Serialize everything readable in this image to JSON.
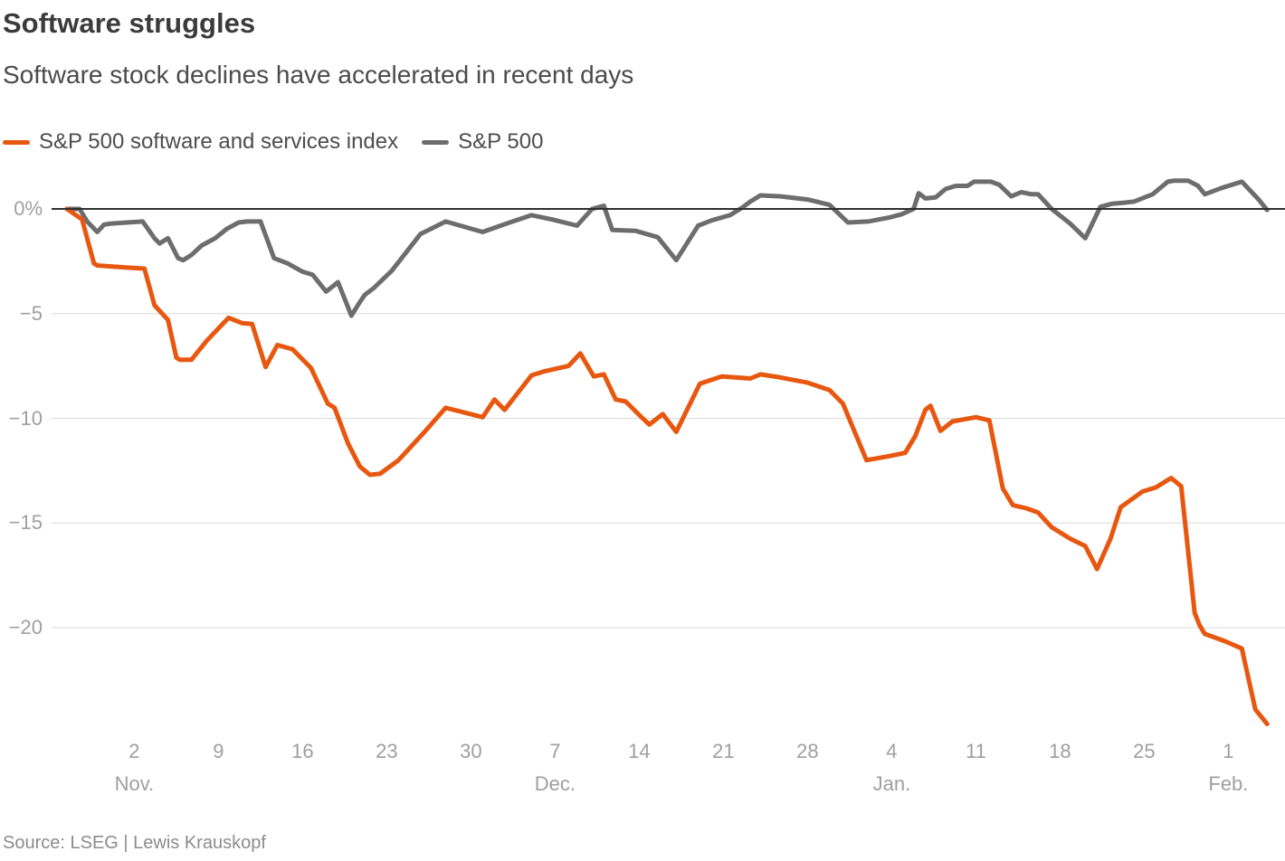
{
  "header": {
    "title": "Software struggles",
    "subtitle": "Software stock declines have accelerated in recent days"
  },
  "source": "Source: LSEG | Lewis Krauskopf",
  "colors": {
    "software_index": "#e8570f",
    "sp500": "#6d6d6d",
    "zero_line": "#2f2f2f",
    "gridline": "#d9d9d9",
    "tick_label": "#9f9f9f"
  },
  "chart_data": {
    "type": "line",
    "title": "Software struggles",
    "subtitle": "Software stock declines have accelerated in recent days",
    "unit": "percent change since start of period (%)",
    "x_unit": "trading days, late Oct to early Feb",
    "grid": "horizontal",
    "legend_position": "top-left",
    "ylim": [
      -25.8,
      1.8
    ],
    "y_axis": {
      "ticks": [
        {
          "v": 0,
          "label": "0%"
        },
        {
          "v": -5,
          "label": "−5"
        },
        {
          "v": -10,
          "label": "−10"
        },
        {
          "v": -15,
          "label": "−15"
        },
        {
          "v": -20,
          "label": "−20"
        }
      ],
      "zero_line": true
    },
    "x_axis": {
      "ticks": [
        {
          "d": 4,
          "label": "2",
          "month": "Nov."
        },
        {
          "d": 9,
          "label": "9"
        },
        {
          "d": 14,
          "label": "16"
        },
        {
          "d": 19,
          "label": "23"
        },
        {
          "d": 24,
          "label": "30"
        },
        {
          "d": 29,
          "label": "7",
          "month": "Dec."
        },
        {
          "d": 34,
          "label": "14"
        },
        {
          "d": 39,
          "label": "21"
        },
        {
          "d": 44,
          "label": "28"
        },
        {
          "d": 49,
          "label": "4",
          "month": "Jan."
        },
        {
          "d": 54,
          "label": "11"
        },
        {
          "d": 59,
          "label": "18"
        },
        {
          "d": 64,
          "label": "25"
        },
        {
          "d": 69,
          "label": "1",
          "month": "Feb."
        }
      ]
    },
    "series": [
      {
        "name": "S&P 500 software and services index",
        "id": "software-index",
        "color": "#e8570f",
        "points": [
          [
            0,
            0
          ],
          [
            0.9,
            -0.5
          ],
          [
            1.6,
            -2.6
          ],
          [
            1.8,
            -2.7
          ],
          [
            3.5,
            -2.8
          ],
          [
            4.6,
            -2.85
          ],
          [
            5.2,
            -4.6
          ],
          [
            6.0,
            -5.3
          ],
          [
            6.5,
            -7.1
          ],
          [
            6.7,
            -7.2
          ],
          [
            7.4,
            -7.2
          ],
          [
            8.3,
            -6.3
          ],
          [
            9.6,
            -5.2
          ],
          [
            10.4,
            -5.45
          ],
          [
            11.0,
            -5.5
          ],
          [
            11.8,
            -7.55
          ],
          [
            12.5,
            -6.5
          ],
          [
            13.4,
            -6.7
          ],
          [
            14.5,
            -7.6
          ],
          [
            15.5,
            -9.3
          ],
          [
            15.9,
            -9.5
          ],
          [
            16.7,
            -11.2
          ],
          [
            17.4,
            -12.3
          ],
          [
            18.0,
            -12.7
          ],
          [
            18.6,
            -12.65
          ],
          [
            19.7,
            -12.0
          ],
          [
            21.3,
            -10.6
          ],
          [
            22.5,
            -9.5
          ],
          [
            23.5,
            -9.7
          ],
          [
            24.7,
            -9.95
          ],
          [
            25.4,
            -9.1
          ],
          [
            26.0,
            -9.6
          ],
          [
            27.6,
            -7.95
          ],
          [
            28.4,
            -7.75
          ],
          [
            29.8,
            -7.5
          ],
          [
            30.5,
            -6.9
          ],
          [
            31.3,
            -8.0
          ],
          [
            31.9,
            -7.9
          ],
          [
            32.6,
            -9.1
          ],
          [
            33.2,
            -9.2
          ],
          [
            34.2,
            -10.0
          ],
          [
            34.6,
            -10.3
          ],
          [
            35.4,
            -9.8
          ],
          [
            36.2,
            -10.65
          ],
          [
            37.6,
            -8.35
          ],
          [
            38.9,
            -8.0
          ],
          [
            40.6,
            -8.1
          ],
          [
            41.2,
            -7.9
          ],
          [
            42.4,
            -8.05
          ],
          [
            44.0,
            -8.3
          ],
          [
            45.3,
            -8.65
          ],
          [
            46.1,
            -9.3
          ],
          [
            47.5,
            -12.0
          ],
          [
            48.9,
            -11.8
          ],
          [
            49.8,
            -11.65
          ],
          [
            50.4,
            -10.85
          ],
          [
            51.0,
            -9.6
          ],
          [
            51.3,
            -9.4
          ],
          [
            51.9,
            -10.6
          ],
          [
            52.6,
            -10.15
          ],
          [
            54.0,
            -9.95
          ],
          [
            54.8,
            -10.1
          ],
          [
            55.6,
            -13.35
          ],
          [
            56.2,
            -14.15
          ],
          [
            57.0,
            -14.3
          ],
          [
            57.7,
            -14.5
          ],
          [
            58.5,
            -15.2
          ],
          [
            59.6,
            -15.75
          ],
          [
            60.5,
            -16.1
          ],
          [
            61.2,
            -17.2
          ],
          [
            62.0,
            -15.75
          ],
          [
            62.6,
            -14.25
          ],
          [
            63.9,
            -13.5
          ],
          [
            64.7,
            -13.3
          ],
          [
            65.6,
            -12.85
          ],
          [
            66.2,
            -13.25
          ],
          [
            67.0,
            -19.3
          ],
          [
            67.3,
            -19.9
          ],
          [
            67.6,
            -20.3
          ],
          [
            68.8,
            -20.65
          ],
          [
            69.8,
            -21.0
          ],
          [
            70.6,
            -23.9
          ],
          [
            71.3,
            -24.6
          ]
        ]
      },
      {
        "name": "S&P 500",
        "id": "sp500",
        "color": "#6d6d6d",
        "points": [
          [
            0,
            0
          ],
          [
            0.75,
            0
          ],
          [
            1.2,
            -0.6
          ],
          [
            1.8,
            -1.1
          ],
          [
            2.2,
            -0.75
          ],
          [
            2.6,
            -0.7
          ],
          [
            4.5,
            -0.6
          ],
          [
            5.2,
            -1.4
          ],
          [
            5.5,
            -1.65
          ],
          [
            6.0,
            -1.4
          ],
          [
            6.6,
            -2.35
          ],
          [
            6.9,
            -2.45
          ],
          [
            7.4,
            -2.2
          ],
          [
            8.0,
            -1.75
          ],
          [
            8.8,
            -1.4
          ],
          [
            9.5,
            -0.95
          ],
          [
            10.2,
            -0.65
          ],
          [
            10.7,
            -0.6
          ],
          [
            11.5,
            -0.6
          ],
          [
            12.3,
            -2.35
          ],
          [
            13.1,
            -2.6
          ],
          [
            14.0,
            -3.0
          ],
          [
            14.6,
            -3.15
          ],
          [
            15.4,
            -3.95
          ],
          [
            16.1,
            -3.5
          ],
          [
            16.6,
            -4.5
          ],
          [
            16.9,
            -5.1
          ],
          [
            17.4,
            -4.45
          ],
          [
            17.7,
            -4.1
          ],
          [
            18.2,
            -3.8
          ],
          [
            19.3,
            -2.95
          ],
          [
            21.0,
            -1.2
          ],
          [
            22.5,
            -0.6
          ],
          [
            24.7,
            -1.1
          ],
          [
            26.3,
            -0.65
          ],
          [
            27.6,
            -0.3
          ],
          [
            28.8,
            -0.5
          ],
          [
            30.3,
            -0.8
          ],
          [
            31.2,
            0.0
          ],
          [
            31.9,
            0.15
          ],
          [
            32.4,
            -1.0
          ],
          [
            33.8,
            -1.05
          ],
          [
            35.1,
            -1.35
          ],
          [
            36.2,
            -2.45
          ],
          [
            37.5,
            -0.8
          ],
          [
            38.3,
            -0.55
          ],
          [
            39.4,
            -0.3
          ],
          [
            40.1,
            0.05
          ],
          [
            40.6,
            0.35
          ],
          [
            41.2,
            0.65
          ],
          [
            42.4,
            0.6
          ],
          [
            44.0,
            0.45
          ],
          [
            45.3,
            0.2
          ],
          [
            46.4,
            -0.65
          ],
          [
            47.6,
            -0.6
          ],
          [
            48.9,
            -0.4
          ],
          [
            49.6,
            -0.25
          ],
          [
            50.3,
            0.0
          ],
          [
            50.6,
            0.75
          ],
          [
            51.0,
            0.5
          ],
          [
            51.6,
            0.55
          ],
          [
            52.2,
            0.95
          ],
          [
            52.8,
            1.1
          ],
          [
            53.5,
            1.1
          ],
          [
            53.9,
            1.3
          ],
          [
            54.9,
            1.3
          ],
          [
            55.4,
            1.15
          ],
          [
            56.1,
            0.6
          ],
          [
            56.7,
            0.8
          ],
          [
            57.3,
            0.7
          ],
          [
            57.7,
            0.7
          ],
          [
            58.5,
            0.0
          ],
          [
            59.6,
            -0.7
          ],
          [
            60.5,
            -1.4
          ],
          [
            61.4,
            0.1
          ],
          [
            62.1,
            0.25
          ],
          [
            62.8,
            0.3
          ],
          [
            63.4,
            0.35
          ],
          [
            64.5,
            0.7
          ],
          [
            65.4,
            1.3
          ],
          [
            65.8,
            1.35
          ],
          [
            66.6,
            1.35
          ],
          [
            67.2,
            1.1
          ],
          [
            67.6,
            0.7
          ],
          [
            68.6,
            1.0
          ],
          [
            69.8,
            1.3
          ],
          [
            70.8,
            0.45
          ],
          [
            71.3,
            -0.05
          ]
        ]
      }
    ]
  }
}
